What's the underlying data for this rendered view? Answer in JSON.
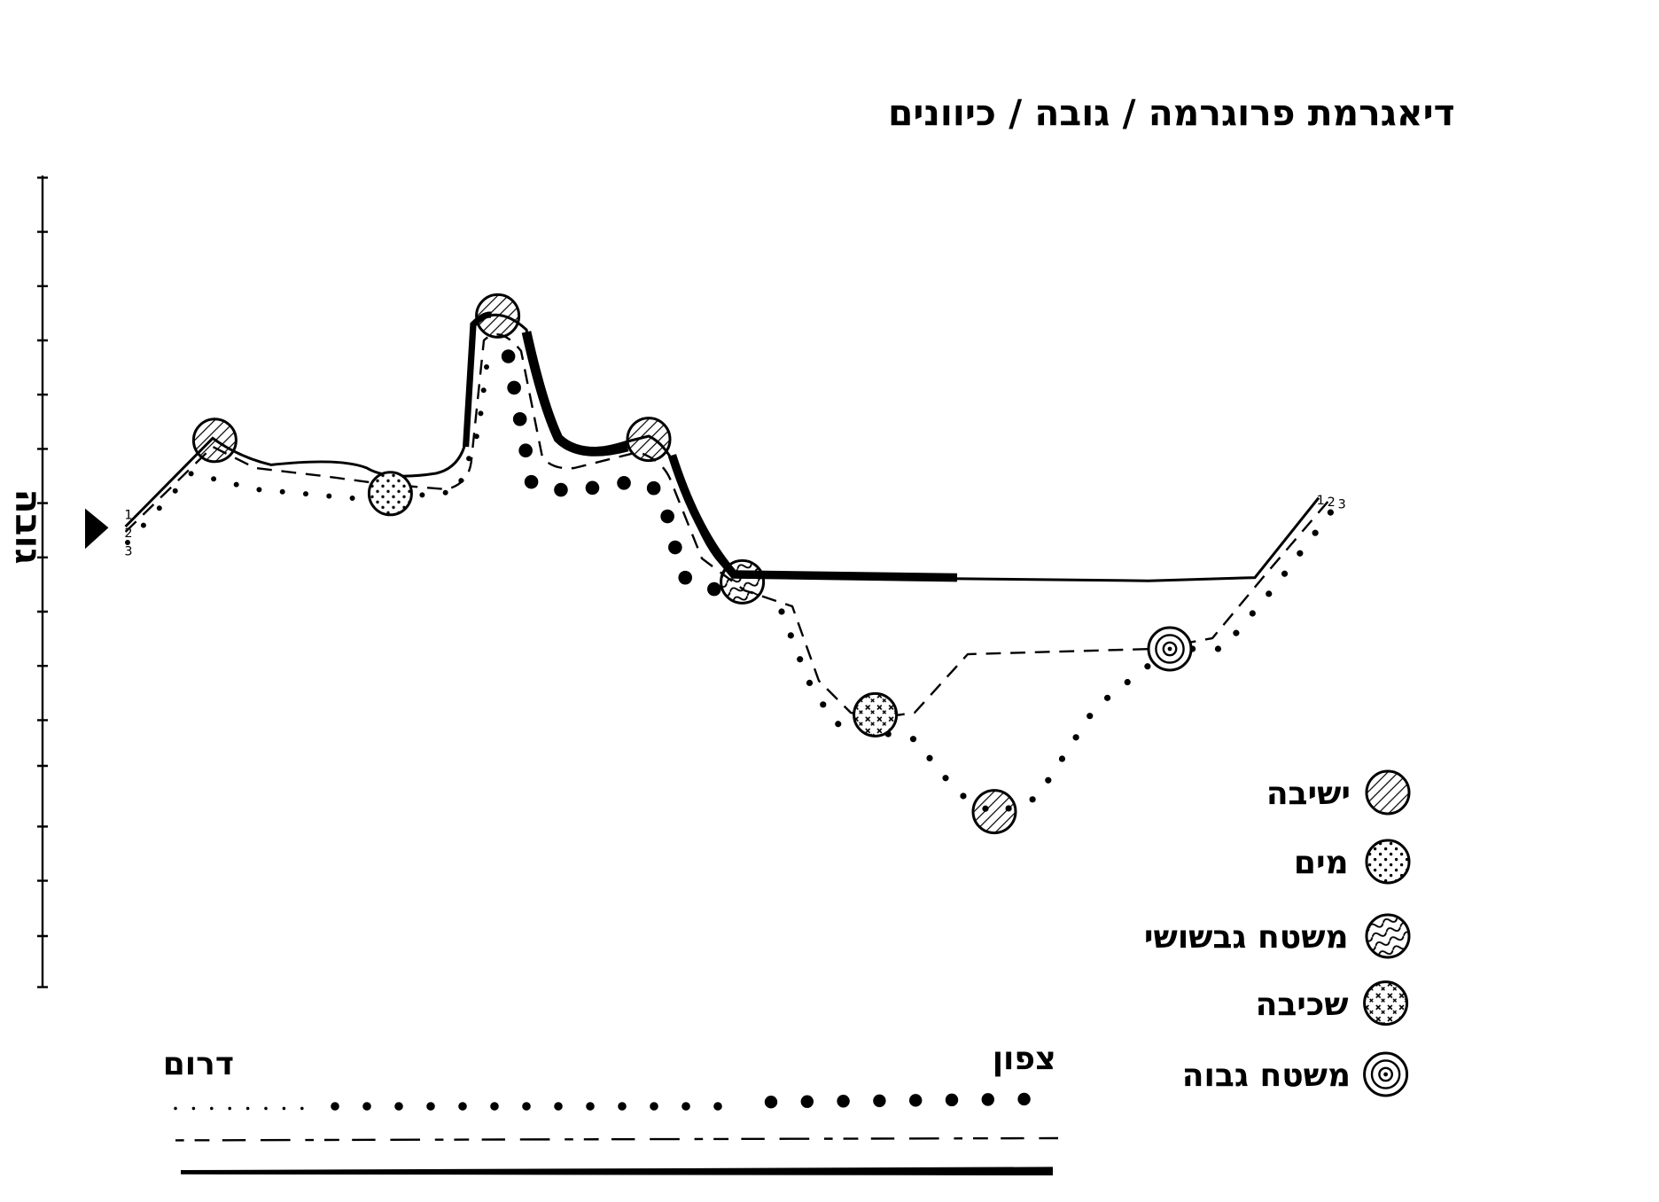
{
  "title": "דיאגרמת פרוגרמה / גובה / כיוונים",
  "axis_label": "גובה",
  "line_numbers": [
    "1",
    "2",
    "3"
  ],
  "directions": {
    "south": "דרום",
    "north": "צפון"
  },
  "legend": [
    {
      "label": "ישיבה"
    },
    {
      "label": "מים"
    },
    {
      "label": "משטח גבשושי"
    },
    {
      "label": "שכיבה"
    },
    {
      "label": "משטח גבוה"
    }
  ]
}
